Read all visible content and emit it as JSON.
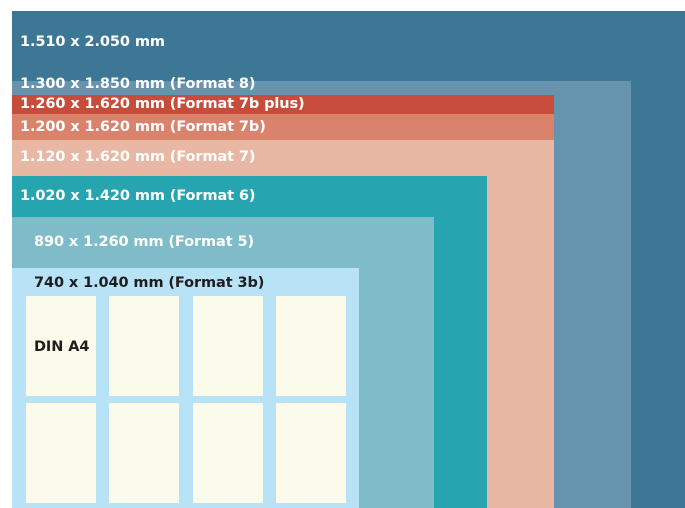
{
  "diagram": {
    "formats": [
      {
        "id": "f-1510",
        "label": "1.510 x 2.050 mm",
        "color": "#3c7896"
      },
      {
        "id": "f-8",
        "label": "1.300 x 1.850 mm (Format 8)",
        "color": "#6694ae"
      },
      {
        "id": "f-7bplus",
        "label": "1.260 x 1.620 mm (Format 7b plus)",
        "color": "#c84c3c"
      },
      {
        "id": "f-7b",
        "label": "1.200 x 1.620 mm (Format 7b)",
        "color": "#d9826c"
      },
      {
        "id": "f-7",
        "label": "1.120 x 1.620 mm (Format 7)",
        "color": "#e8b8a4"
      },
      {
        "id": "f-6",
        "label": "1.020 x 1.420 mm (Format 6)",
        "color": "#26a5b0"
      },
      {
        "id": "f-5",
        "label": "890 x 1.260 mm (Format 5)",
        "color": "#7dbcc8"
      },
      {
        "id": "f-3b",
        "label": "740 x 1.040 mm (Format 3b)",
        "color": "#b8e2f6"
      }
    ],
    "din_a4_label": "DIN A4",
    "sheet_color": "#fbfbec"
  }
}
